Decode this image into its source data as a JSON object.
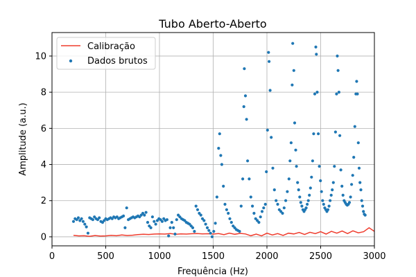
{
  "chart_data": {
    "type": "scatter",
    "title": "Tubo Aberto-Aberto",
    "xlabel": "Frequência (Hz)",
    "ylabel": "Amplitude (a.u.)",
    "xlim": [
      0,
      3000
    ],
    "ylim": [
      -0.5,
      11.3
    ],
    "xticks": [
      0,
      500,
      1000,
      1500,
      2000,
      2500,
      3000
    ],
    "yticks": [
      0,
      2,
      4,
      6,
      8,
      10
    ],
    "grid": true,
    "legend_position": "upper left",
    "series": [
      {
        "name": "Calibração",
        "kind": "line",
        "color": "#ef3b2c",
        "x": [
          200,
          250,
          300,
          350,
          400,
          450,
          500,
          550,
          600,
          650,
          700,
          750,
          800,
          850,
          900,
          950,
          1000,
          1050,
          1100,
          1150,
          1200,
          1250,
          1300,
          1350,
          1400,
          1450,
          1500,
          1550,
          1600,
          1650,
          1700,
          1750,
          1800,
          1850,
          1900,
          1950,
          2000,
          2050,
          2100,
          2150,
          2200,
          2250,
          2300,
          2350,
          2400,
          2450,
          2500,
          2550,
          2600,
          2650,
          2700,
          2750,
          2800,
          2850,
          2900,
          2950,
          3000
        ],
        "y": [
          0.08,
          0.05,
          0.06,
          0.03,
          0.07,
          0.04,
          0.05,
          0.08,
          0.06,
          0.1,
          0.07,
          0.09,
          0.12,
          0.14,
          0.13,
          0.15,
          0.16,
          0.15,
          0.18,
          0.14,
          0.16,
          0.15,
          0.17,
          0.18,
          0.16,
          0.17,
          0.15,
          0.18,
          0.12,
          0.2,
          0.14,
          0.19,
          0.16,
          0.06,
          0.15,
          0.05,
          0.2,
          0.1,
          0.18,
          0.08,
          0.2,
          0.16,
          0.24,
          0.13,
          0.25,
          0.18,
          0.28,
          0.15,
          0.3,
          0.2,
          0.32,
          0.18,
          0.33,
          0.22,
          0.28,
          0.5,
          0.3
        ]
      },
      {
        "name": "Dados brutos",
        "kind": "scatter",
        "color": "#1f77b4",
        "points": [
          [
            200,
            0.85
          ],
          [
            215,
            1.0
          ],
          [
            230,
            0.95
          ],
          [
            245,
            1.05
          ],
          [
            260,
            0.9
          ],
          [
            275,
            1.0
          ],
          [
            290,
            0.85
          ],
          [
            305,
            0.7
          ],
          [
            320,
            0.55
          ],
          [
            335,
            0.2
          ],
          [
            350,
            1.05
          ],
          [
            365,
            1.0
          ],
          [
            380,
            0.95
          ],
          [
            395,
            1.1
          ],
          [
            410,
            1.0
          ],
          [
            425,
            0.95
          ],
          [
            440,
            1.05
          ],
          [
            455,
            0.85
          ],
          [
            470,
            0.8
          ],
          [
            485,
            0.9
          ],
          [
            500,
            1.0
          ],
          [
            515,
            0.95
          ],
          [
            530,
            1.0
          ],
          [
            545,
            1.05
          ],
          [
            560,
            1.0
          ],
          [
            575,
            1.1
          ],
          [
            590,
            1.05
          ],
          [
            605,
            1.1
          ],
          [
            620,
            1.0
          ],
          [
            635,
            1.05
          ],
          [
            650,
            1.1
          ],
          [
            665,
            1.15
          ],
          [
            680,
            0.5
          ],
          [
            695,
            1.6
          ],
          [
            710,
            0.95
          ],
          [
            725,
            1.0
          ],
          [
            740,
            1.05
          ],
          [
            755,
            1.1
          ],
          [
            770,
            1.05
          ],
          [
            785,
            1.1
          ],
          [
            800,
            1.15
          ],
          [
            815,
            1.1
          ],
          [
            830,
            1.2
          ],
          [
            845,
            1.3
          ],
          [
            860,
            1.2
          ],
          [
            875,
            1.35
          ],
          [
            890,
            0.8
          ],
          [
            905,
            0.6
          ],
          [
            920,
            0.5
          ],
          [
            935,
            1.1
          ],
          [
            950,
            0.85
          ],
          [
            965,
            0.7
          ],
          [
            980,
            0.9
          ],
          [
            995,
            1.0
          ],
          [
            1010,
            0.95
          ],
          [
            1025,
            0.85
          ],
          [
            1040,
            1.0
          ],
          [
            1055,
            0.9
          ],
          [
            1070,
            0.95
          ],
          [
            1085,
            0.05
          ],
          [
            1100,
            0.5
          ],
          [
            1115,
            0.8
          ],
          [
            1130,
            0.5
          ],
          [
            1145,
            0.15
          ],
          [
            1160,
            0.95
          ],
          [
            1175,
            1.2
          ],
          [
            1190,
            1.1
          ],
          [
            1205,
            1.0
          ],
          [
            1220,
            0.95
          ],
          [
            1235,
            0.9
          ],
          [
            1250,
            0.8
          ],
          [
            1265,
            0.75
          ],
          [
            1280,
            0.7
          ],
          [
            1295,
            0.6
          ],
          [
            1310,
            0.5
          ],
          [
            1325,
            0.3
          ],
          [
            1340,
            1.7
          ],
          [
            1355,
            1.5
          ],
          [
            1370,
            1.3
          ],
          [
            1385,
            1.2
          ],
          [
            1400,
            1.0
          ],
          [
            1415,
            0.9
          ],
          [
            1430,
            0.7
          ],
          [
            1445,
            0.5
          ],
          [
            1460,
            0.35
          ],
          [
            1475,
            0.2
          ],
          [
            1490,
            0.0
          ],
          [
            1505,
            0.3
          ],
          [
            1520,
            0.75
          ],
          [
            1535,
            2.2
          ],
          [
            1550,
            4.9
          ],
          [
            1560,
            5.7
          ],
          [
            1570,
            4.5
          ],
          [
            1580,
            4.0
          ],
          [
            1595,
            2.8
          ],
          [
            1610,
            1.8
          ],
          [
            1625,
            1.5
          ],
          [
            1640,
            1.3
          ],
          [
            1655,
            1.0
          ],
          [
            1670,
            0.8
          ],
          [
            1685,
            0.6
          ],
          [
            1700,
            0.5
          ],
          [
            1715,
            0.4
          ],
          [
            1730,
            0.35
          ],
          [
            1745,
            0.3
          ],
          [
            1760,
            1.7
          ],
          [
            1775,
            3.2
          ],
          [
            1785,
            7.2
          ],
          [
            1790,
            9.3
          ],
          [
            1800,
            7.8
          ],
          [
            1810,
            6.5
          ],
          [
            1820,
            4.2
          ],
          [
            1835,
            3.2
          ],
          [
            1850,
            2.2
          ],
          [
            1865,
            1.7
          ],
          [
            1880,
            1.3
          ],
          [
            1895,
            1.0
          ],
          [
            1910,
            0.9
          ],
          [
            1925,
            0.8
          ],
          [
            1940,
            1.1
          ],
          [
            1955,
            1.4
          ],
          [
            1970,
            1.6
          ],
          [
            1985,
            1.8
          ],
          [
            1995,
            3.6
          ],
          [
            2005,
            5.9
          ],
          [
            2015,
            10.2
          ],
          [
            2020,
            9.7
          ],
          [
            2030,
            8.1
          ],
          [
            2040,
            5.5
          ],
          [
            2055,
            3.8
          ],
          [
            2070,
            2.6
          ],
          [
            2085,
            2.0
          ],
          [
            2100,
            1.8
          ],
          [
            2115,
            1.5
          ],
          [
            2130,
            1.4
          ],
          [
            2145,
            1.3
          ],
          [
            2160,
            1.6
          ],
          [
            2175,
            2.0
          ],
          [
            2190,
            2.5
          ],
          [
            2205,
            3.2
          ],
          [
            2215,
            4.2
          ],
          [
            2225,
            5.2
          ],
          [
            2235,
            8.4
          ],
          [
            2240,
            10.7
          ],
          [
            2250,
            9.2
          ],
          [
            2258,
            6.3
          ],
          [
            2268,
            4.8
          ],
          [
            2275,
            3.9
          ],
          [
            2285,
            3.0
          ],
          [
            2295,
            2.6
          ],
          [
            2305,
            2.2
          ],
          [
            2315,
            1.9
          ],
          [
            2325,
            1.7
          ],
          [
            2335,
            1.5
          ],
          [
            2345,
            1.4
          ],
          [
            2355,
            1.5
          ],
          [
            2365,
            1.6
          ],
          [
            2375,
            1.8
          ],
          [
            2385,
            2.0
          ],
          [
            2395,
            2.3
          ],
          [
            2405,
            2.7
          ],
          [
            2415,
            3.3
          ],
          [
            2425,
            4.2
          ],
          [
            2435,
            5.7
          ],
          [
            2445,
            7.9
          ],
          [
            2455,
            10.5
          ],
          [
            2460,
            10.1
          ],
          [
            2468,
            8.0
          ],
          [
            2478,
            5.7
          ],
          [
            2488,
            3.9
          ],
          [
            2498,
            3.1
          ],
          [
            2508,
            2.5
          ],
          [
            2518,
            2.0
          ],
          [
            2528,
            1.8
          ],
          [
            2538,
            1.6
          ],
          [
            2548,
            1.5
          ],
          [
            2558,
            1.4
          ],
          [
            2568,
            1.5
          ],
          [
            2578,
            1.7
          ],
          [
            2588,
            2.0
          ],
          [
            2598,
            2.3
          ],
          [
            2608,
            2.6
          ],
          [
            2618,
            3.0
          ],
          [
            2628,
            3.9
          ],
          [
            2638,
            5.8
          ],
          [
            2648,
            7.9
          ],
          [
            2655,
            10.0
          ],
          [
            2662,
            9.2
          ],
          [
            2670,
            8.0
          ],
          [
            2678,
            5.6
          ],
          [
            2688,
            3.7
          ],
          [
            2698,
            2.8
          ],
          [
            2708,
            2.3
          ],
          [
            2718,
            2.0
          ],
          [
            2728,
            1.9
          ],
          [
            2738,
            1.8
          ],
          [
            2748,
            1.75
          ],
          [
            2758,
            1.8
          ],
          [
            2768,
            1.9
          ],
          [
            2778,
            2.2
          ],
          [
            2788,
            2.9
          ],
          [
            2798,
            3.4
          ],
          [
            2808,
            4.4
          ],
          [
            2818,
            6.1
          ],
          [
            2828,
            7.9
          ],
          [
            2835,
            8.6
          ],
          [
            2842,
            7.9
          ],
          [
            2850,
            5.2
          ],
          [
            2858,
            3.8
          ],
          [
            2866,
            3.0
          ],
          [
            2874,
            2.6
          ],
          [
            2882,
            2.0
          ],
          [
            2890,
            1.7
          ],
          [
            2898,
            1.4
          ],
          [
            2906,
            1.25
          ],
          [
            2914,
            1.2
          ]
        ]
      }
    ]
  }
}
